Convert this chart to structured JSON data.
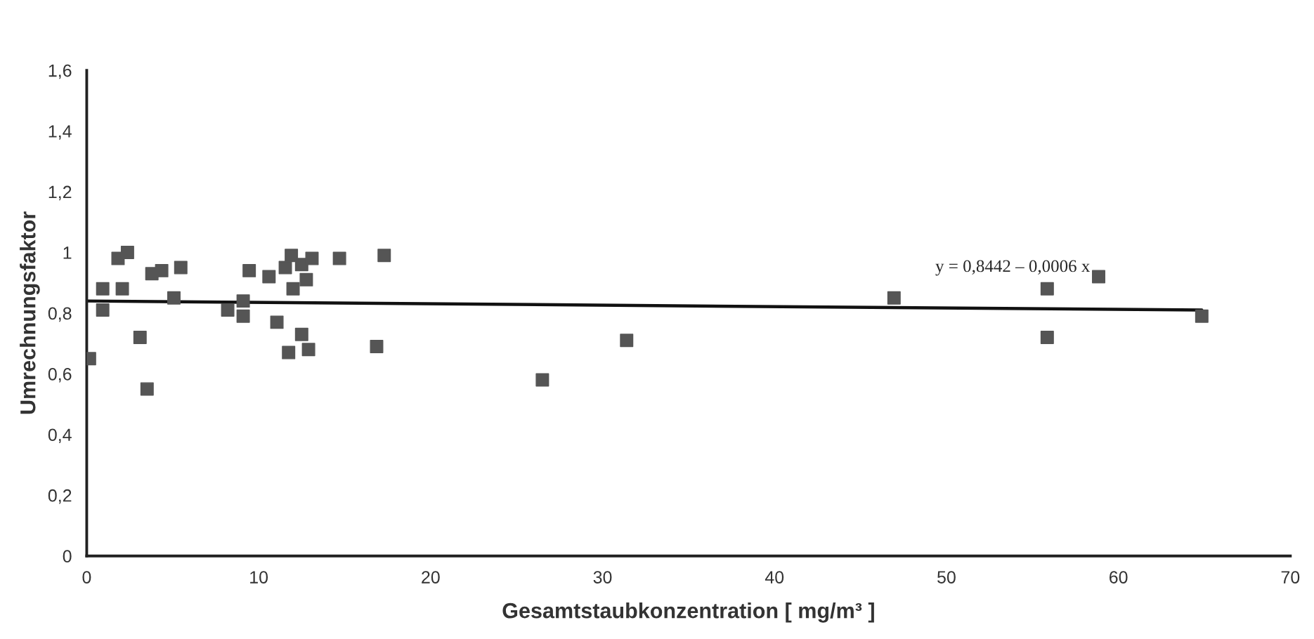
{
  "chart_data": {
    "type": "scatter",
    "xlabel": "Gesamtstaubkonzentration [ mg/m³ ]",
    "ylabel": "Umrechnungsfaktor",
    "xlim": [
      0,
      70
    ],
    "xticks": [
      0,
      10,
      20,
      30,
      40,
      50,
      60,
      70
    ],
    "ylim": [
      0,
      1.6
    ],
    "yticks": [
      {
        "value": 0,
        "label": "0"
      },
      {
        "value": 0.2,
        "label": "0,2"
      },
      {
        "value": 0.4,
        "label": "0,4"
      },
      {
        "value": 0.6,
        "label": "0,6"
      },
      {
        "value": 0.8,
        "label": "0,8"
      },
      {
        "value": 1,
        "label": "1"
      },
      {
        "value": 1.2,
        "label": "1,2"
      },
      {
        "value": 1.4,
        "label": "1,4"
      },
      {
        "value": 1.6,
        "label": "1,6"
      }
    ],
    "grid": false,
    "legend": false,
    "marker": "square",
    "annotations": [
      "y = 0,8442 – 0,0006 x"
    ],
    "series": [
      {
        "color": "#555555",
        "x": [
          0.16,
          0.93,
          0.93,
          1.82,
          2.37,
          2.07,
          3.1,
          3.51,
          3.79,
          4.36,
          5.07,
          5.47,
          8.2,
          9.1,
          9.1,
          9.45,
          10.6,
          11.06,
          11.55,
          11.9,
          12.0,
          12.5,
          12.77,
          13.1,
          14.7,
          12.5,
          11.74,
          12.9,
          17.3,
          16.86,
          26.5,
          31.4,
          46.95,
          55.86,
          55.86,
          58.85,
          64.85
        ],
        "values": [
          0.65,
          0.88,
          0.81,
          0.98,
          1.0,
          0.88,
          0.72,
          0.55,
          0.93,
          0.94,
          0.85,
          0.95,
          0.81,
          0.84,
          0.79,
          0.94,
          0.92,
          0.77,
          0.95,
          0.99,
          0.88,
          0.96,
          0.91,
          0.98,
          0.98,
          0.73,
          0.67,
          0.68,
          0.99,
          0.69,
          0.58,
          0.71,
          0.85,
          0.88,
          0.72,
          0.92,
          0.79
        ]
      },
      {
        "type": "line",
        "color": "#111111",
        "marker": "none",
        "line_style": "solid",
        "x": [
          0,
          64.85
        ],
        "values": [
          0.84,
          0.81
        ]
      }
    ]
  }
}
